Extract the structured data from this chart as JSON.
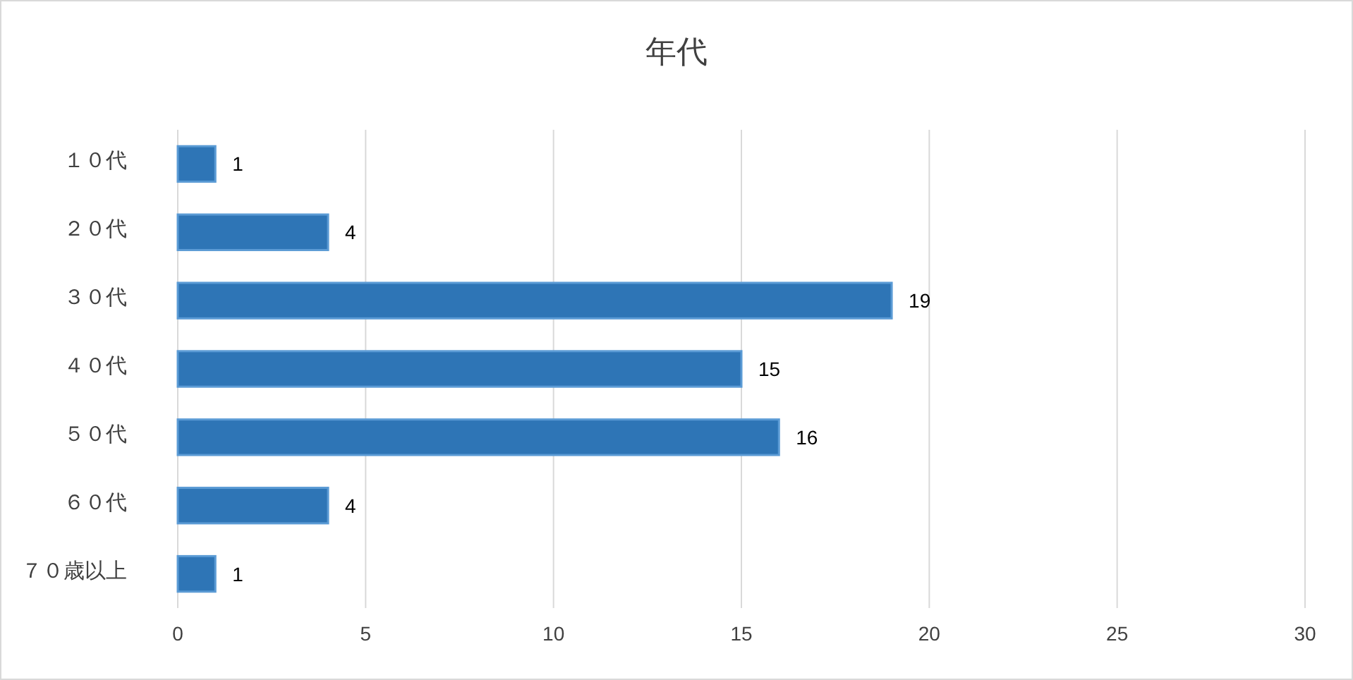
{
  "chart_data": {
    "type": "bar",
    "title": "年代",
    "orientation": "horizontal",
    "categories": [
      "１０代",
      "２０代",
      "３０代",
      "４０代",
      "５０代",
      "６０代",
      "７０歳以上"
    ],
    "values": [
      1,
      4,
      19,
      15,
      16,
      4,
      1
    ],
    "color": "#2e75b6",
    "xlim": [
      0,
      30
    ],
    "xticks": [
      0,
      5,
      10,
      15,
      20,
      25,
      30
    ],
    "grid": "x",
    "data_labels": true
  }
}
